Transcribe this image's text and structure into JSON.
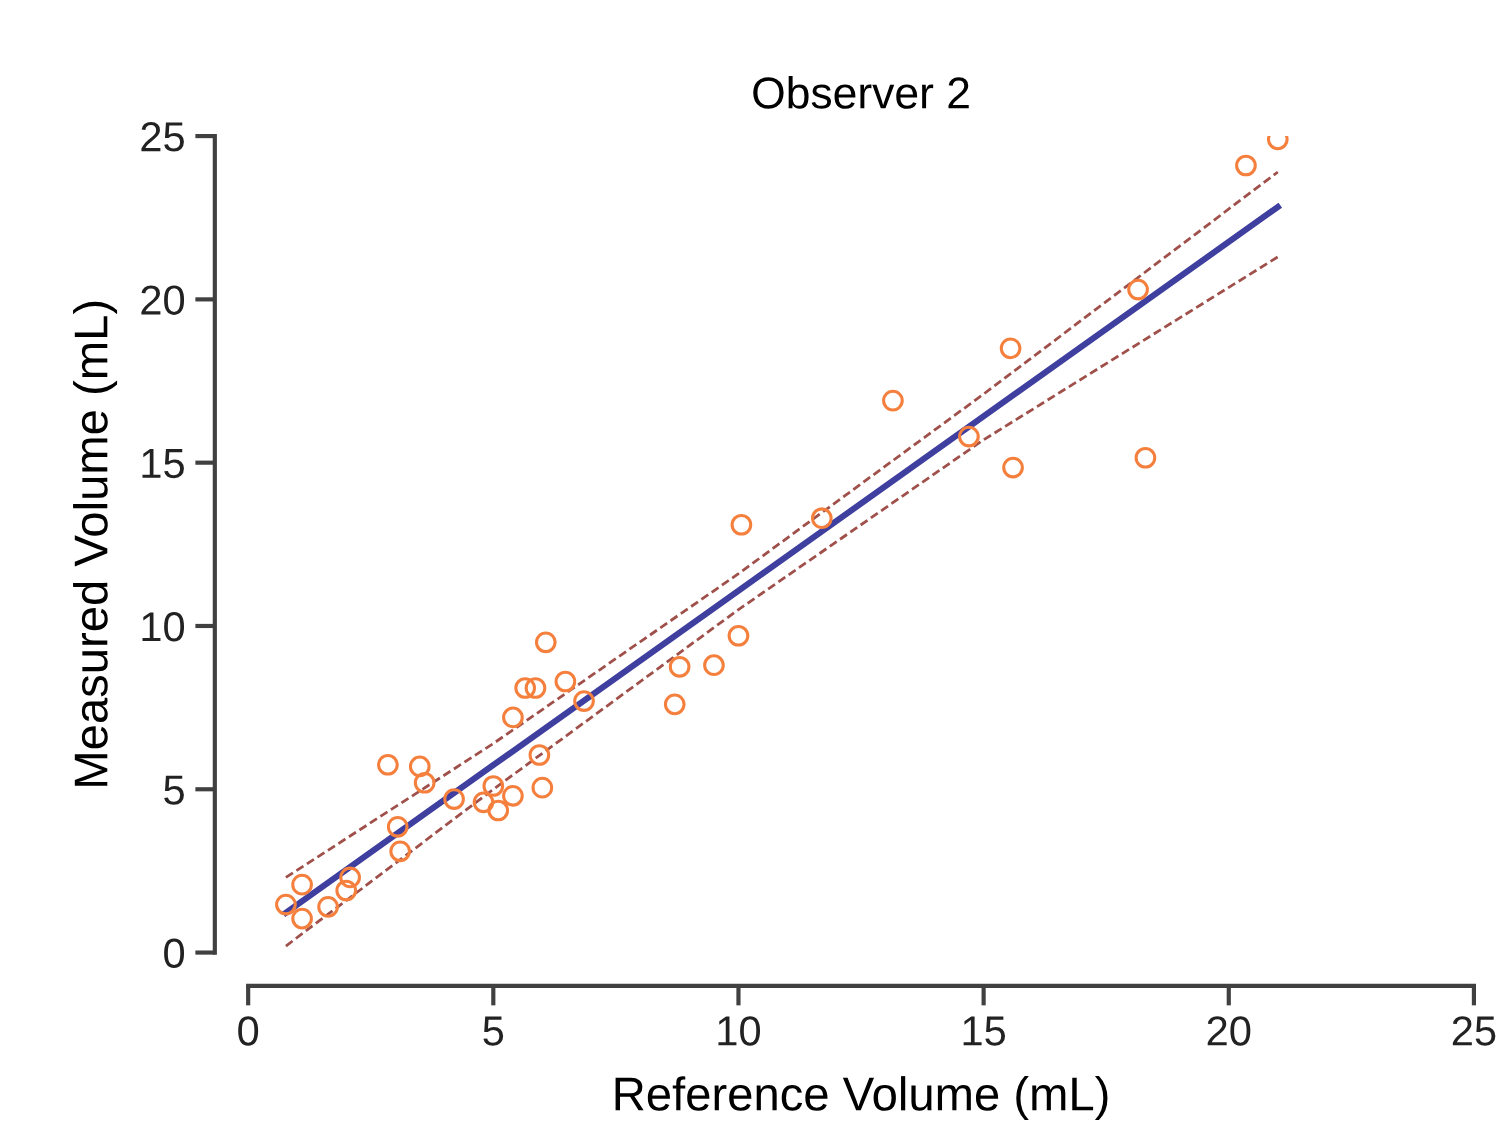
{
  "chart_data": {
    "type": "scatter",
    "title": "Observer 2",
    "xlabel": "Reference Volume (mL)",
    "ylabel": "Measured Volume (mL)",
    "xlim": [
      0,
      25
    ],
    "ylim": [
      0,
      25
    ],
    "xticks": [
      0,
      5,
      10,
      15,
      20,
      25
    ],
    "yticks": [
      0,
      5,
      10,
      15,
      20,
      25
    ],
    "grid": false,
    "legend": false,
    "series": [
      {
        "color": "#f5803e",
        "marker": "circle",
        "x": [
          0.77,
          1.1,
          1.1,
          1.63,
          2.0,
          2.08,
          2.85,
          3.05,
          3.1,
          3.5,
          3.6,
          4.2,
          4.8,
          5.0,
          5.1,
          5.4,
          5.4,
          5.65,
          5.86,
          5.94,
          6.0,
          6.07,
          6.47,
          6.85,
          8.7,
          8.8,
          9.5,
          10.0,
          10.06,
          11.7,
          13.15,
          14.7,
          15.6,
          15.55,
          18.3,
          18.15,
          20.35,
          21.0
        ],
        "values": [
          1.47,
          2.08,
          1.04,
          1.4,
          1.9,
          2.3,
          5.75,
          3.85,
          3.1,
          5.7,
          5.2,
          4.7,
          4.6,
          5.1,
          4.35,
          4.8,
          7.2,
          8.1,
          8.1,
          6.05,
          5.05,
          9.5,
          8.3,
          7.7,
          7.6,
          8.75,
          8.8,
          9.7,
          13.1,
          13.3,
          16.9,
          15.8,
          14.85,
          18.5,
          15.15,
          20.3,
          24.1,
          24.9
        ]
      },
      {
        "type": "line",
        "color": "#a0504a",
        "line_style": "dashed",
        "x": [
          0.77,
          5,
          10,
          15,
          21
        ],
        "values": [
          2.3,
          6.4,
          11.6,
          17.1,
          23.9
        ]
      },
      {
        "type": "line",
        "color": "#a0504a",
        "line_style": "dashed",
        "x": [
          0.77,
          5,
          10,
          15,
          21
        ],
        "values": [
          0.2,
          5.0,
          10.5,
          15.7,
          21.3
        ]
      },
      {
        "type": "line",
        "color": "#3f3fa0",
        "line_style": "solid",
        "x": [
          0.77,
          5,
          10,
          15,
          21
        ],
        "values": [
          1.22,
          5.74,
          11.08,
          16.42,
          22.83
        ]
      }
    ]
  }
}
